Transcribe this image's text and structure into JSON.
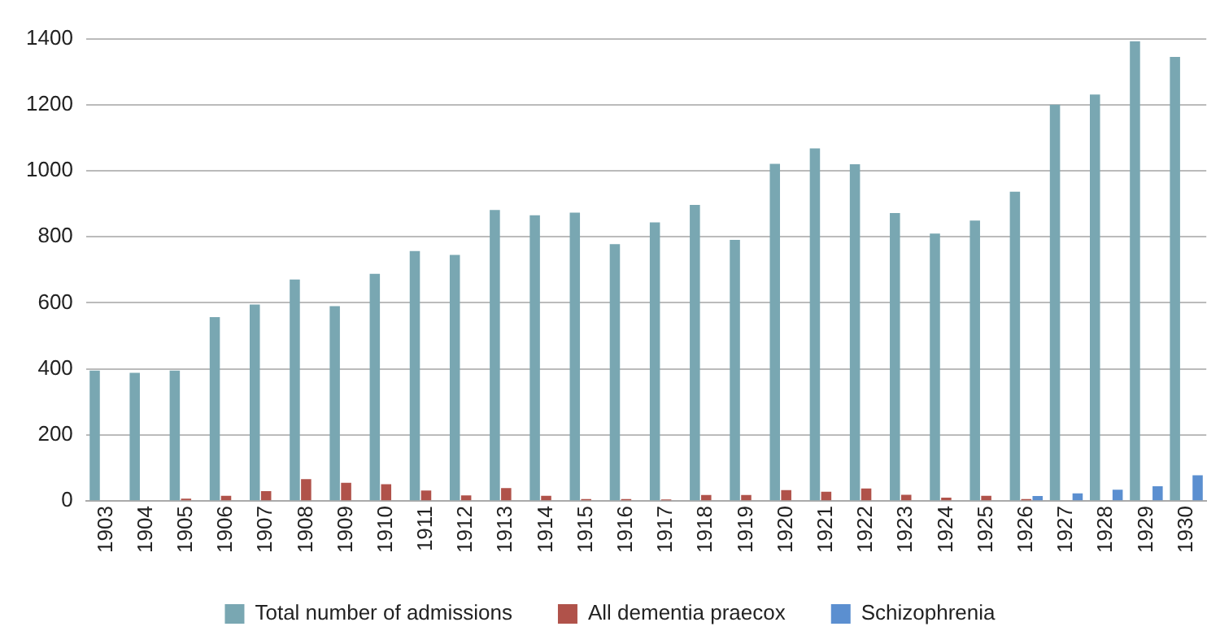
{
  "chart_data": {
    "type": "bar",
    "categories": [
      "1903",
      "1904",
      "1905",
      "1906",
      "1907",
      "1908",
      "1909",
      "1910",
      "1911",
      "1912",
      "1913",
      "1914",
      "1915",
      "1916",
      "1917",
      "1918",
      "1919",
      "1920",
      "1921",
      "1922",
      "1923",
      "1924",
      "1925",
      "1926",
      "1927",
      "1928",
      "1929",
      "1930"
    ],
    "series": [
      {
        "name": "Total number of admissions",
        "color": "#79a7b2",
        "values": [
          395,
          388,
          395,
          557,
          595,
          671,
          590,
          688,
          757,
          745,
          881,
          865,
          873,
          778,
          844,
          897,
          791,
          1021,
          1068,
          1020,
          872,
          810,
          849,
          937,
          1200,
          1231,
          1392,
          1345
        ]
      },
      {
        "name": "All dementia praecox",
        "color": "#b0524a",
        "values": [
          0,
          0,
          7,
          16,
          30,
          66,
          55,
          51,
          32,
          17,
          39,
          16,
          6,
          6,
          5,
          18,
          18,
          33,
          28,
          38,
          19,
          10,
          16,
          6,
          null,
          null,
          null,
          null
        ]
      },
      {
        "name": "Schizophrenia",
        "color": "#5b8fd0",
        "values": [
          null,
          null,
          null,
          null,
          null,
          null,
          null,
          null,
          null,
          null,
          null,
          null,
          null,
          null,
          null,
          null,
          null,
          null,
          null,
          null,
          null,
          null,
          null,
          15,
          23,
          34,
          45,
          78
        ]
      }
    ],
    "ylim": [
      0,
      1400
    ],
    "yticks": [
      0,
      200,
      400,
      600,
      800,
      1000,
      1200,
      1400
    ],
    "grid": "y",
    "legend": "bottom"
  }
}
